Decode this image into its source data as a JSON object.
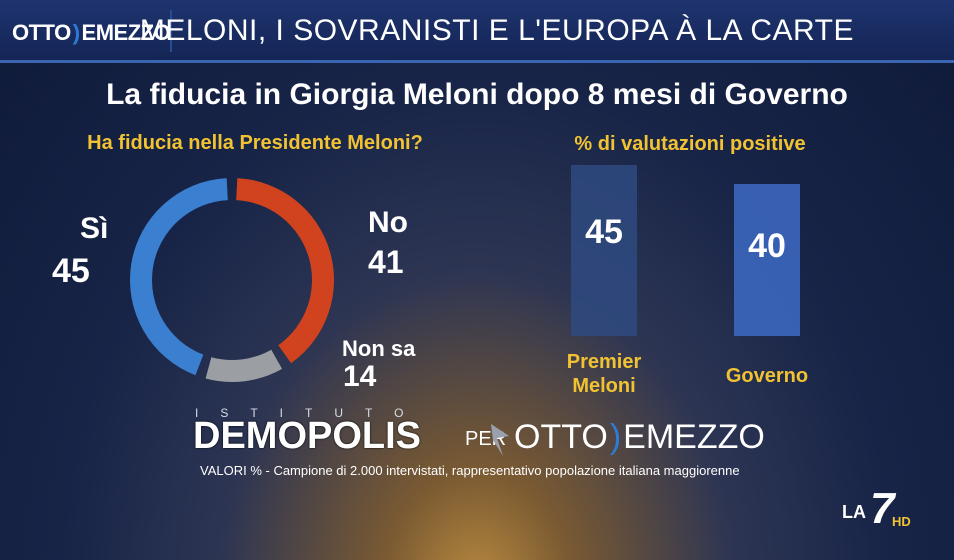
{
  "header": {
    "logo_left": "OTTO",
    "logo_right": "EMEZZO",
    "headline": "MELONI, I SOVRANISTI E L'EUROPA À LA CARTE"
  },
  "title": "La fiducia in Giorgia Meloni dopo 8 mesi di Governo",
  "left_question": "Ha fiducia nella Presidente Meloni?",
  "right_question": "% di valutazioni positive",
  "chart_data": [
    {
      "type": "pie",
      "title": "Ha fiducia nella Presidente Meloni?",
      "categories": [
        "Sì",
        "No",
        "Non sa"
      ],
      "values": [
        45,
        41,
        14
      ],
      "colors": [
        "#3a7fd0",
        "#d0431e",
        "#9b9ea3"
      ]
    },
    {
      "type": "bar",
      "title": "% di valutazioni positive",
      "categories": [
        "Premier Meloni",
        "Governo"
      ],
      "category_lines": [
        [
          "Premier",
          "Meloni"
        ],
        [
          "Governo"
        ]
      ],
      "values": [
        45,
        40
      ],
      "ylim": [
        0,
        50
      ],
      "colors": [
        "#2f4a80",
        "#3a63b8"
      ]
    }
  ],
  "brand": {
    "istituto": "ISTITUTO",
    "name": "DEMOPOLIS",
    "per": "PER",
    "partner_left": "OTTO",
    "partner_right": "EMEZZO"
  },
  "footnote": "VALORI % - Campione di 2.000 intervistati, rappresentativo popolazione italiana maggiorenne",
  "channel": {
    "name": "LA",
    "number": "7",
    "hd": "HD"
  },
  "colors": {
    "accent_yellow": "#f1c232",
    "header_blue": "#1f3470"
  }
}
